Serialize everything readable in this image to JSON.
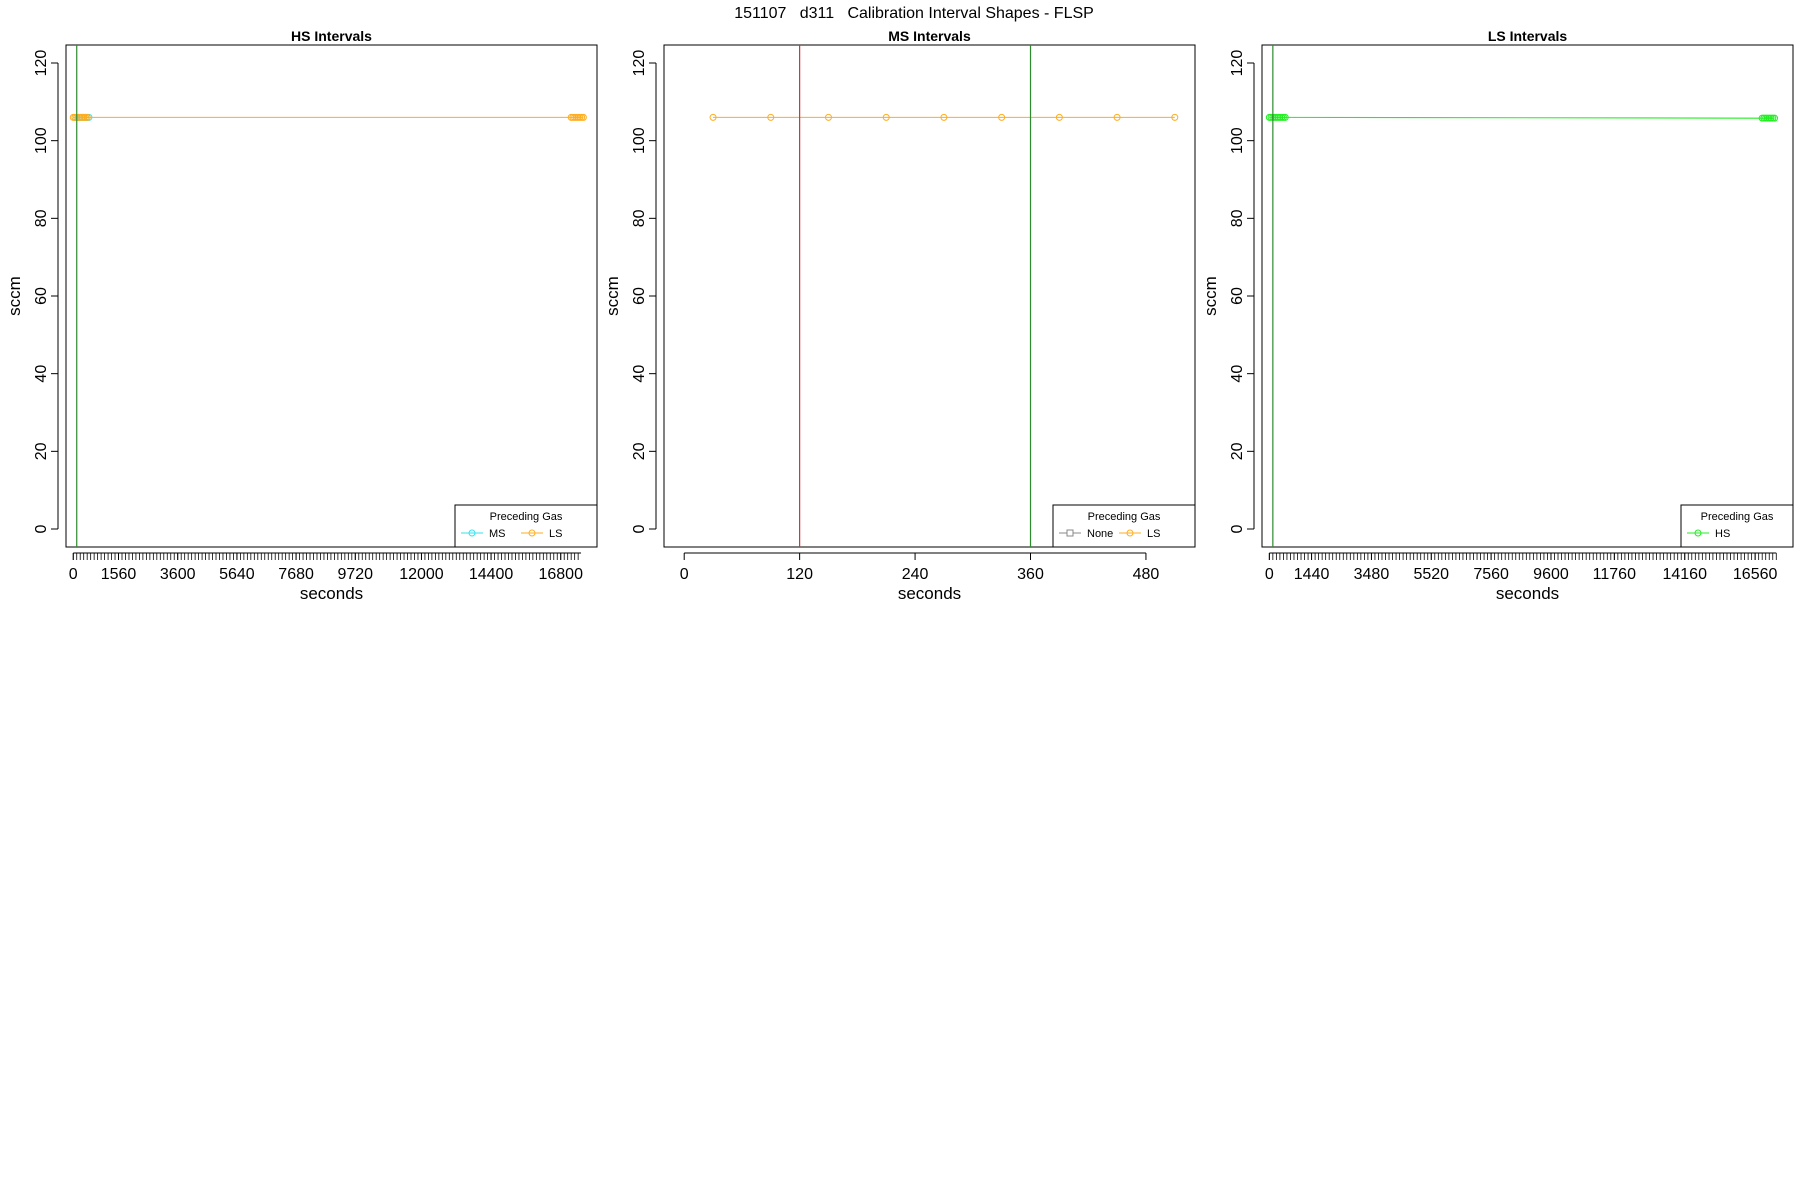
{
  "figure_title": "151107   d311   Calibration Interval Shapes - FLSP",
  "colors": {
    "MS": "#33e3ee",
    "LS": "#ffad1f",
    "HS": "#22ee22",
    "None": "#888888",
    "vline_green": "#2e8b2e",
    "vline_red": "#cc3333"
  },
  "chart_data": [
    {
      "type": "line",
      "title": "HS Intervals",
      "xlabel": "seconds",
      "ylabel": "sccm",
      "ylim": [
        0,
        120
      ],
      "yticks": [
        0,
        20,
        40,
        60,
        80,
        100,
        120
      ],
      "xlim": [
        -250,
        18050
      ],
      "xticks": [
        0,
        1560,
        3600,
        5640,
        7680,
        9720,
        12000,
        14400,
        16800
      ],
      "minor_ticks": {
        "from": 0,
        "to": 17500,
        "step": 120
      },
      "vlines": [
        {
          "x": 120,
          "color": "vline_green"
        }
      ],
      "grid": false,
      "legend": {
        "title": "Preceding Gas",
        "position": "bottom-right",
        "entries": [
          "MS",
          "LS"
        ]
      },
      "series": [
        {
          "name": "MS",
          "color": "MS",
          "marker": "circle",
          "x": [
            60,
            120,
            180,
            240,
            300,
            360,
            420,
            480,
            540
          ],
          "y": [
            106,
            106,
            106,
            106,
            106,
            106,
            106,
            106,
            106
          ]
        },
        {
          "name": "LS",
          "color": "LS",
          "marker": "circle",
          "x": [
            0,
            60,
            120,
            180,
            240,
            300,
            360,
            420,
            480,
            17160,
            17220,
            17280,
            17340,
            17400,
            17460,
            17520,
            17580
          ],
          "y": [
            106,
            106,
            106,
            106,
            106,
            106,
            106,
            106,
            106,
            106,
            106,
            106,
            106,
            106,
            106,
            106,
            106
          ]
        }
      ]
    },
    {
      "type": "line",
      "title": "MS Intervals",
      "xlabel": "seconds",
      "ylabel": "sccm",
      "ylim": [
        0,
        120
      ],
      "yticks": [
        0,
        20,
        40,
        60,
        80,
        100,
        120
      ],
      "xlim": [
        -21,
        531
      ],
      "xticks": [
        0,
        120,
        240,
        360,
        480
      ],
      "minor_ticks": null,
      "vlines": [
        {
          "x": 120,
          "color": "vline_red"
        },
        {
          "x": 360,
          "color": "vline_green"
        }
      ],
      "grid": false,
      "legend": {
        "title": "Preceding Gas",
        "position": "bottom-right",
        "entries": [
          "None",
          "LS"
        ]
      },
      "series": [
        {
          "name": "None",
          "color": "None",
          "marker": "square",
          "x": [],
          "y": []
        },
        {
          "name": "LS",
          "color": "LS",
          "marker": "circle",
          "x": [
            30,
            90,
            150,
            210,
            270,
            330,
            390,
            450,
            510
          ],
          "y": [
            106,
            106,
            106,
            106,
            106,
            106,
            106,
            106,
            106
          ]
        }
      ]
    },
    {
      "type": "line",
      "title": "LS Intervals",
      "xlabel": "seconds",
      "ylabel": "sccm",
      "ylim": [
        0,
        120
      ],
      "yticks": [
        0,
        20,
        40,
        60,
        80,
        100,
        120
      ],
      "xlim": [
        -250,
        17850
      ],
      "xticks": [
        0,
        1440,
        3480,
        5520,
        7560,
        9600,
        11760,
        14160,
        16560
      ],
      "minor_ticks": {
        "from": 0,
        "to": 17280,
        "step": 120
      },
      "vlines": [
        {
          "x": 120,
          "color": "vline_green"
        }
      ],
      "grid": false,
      "legend": {
        "title": "Preceding Gas",
        "position": "bottom-right",
        "entries": [
          "HS"
        ]
      },
      "series": [
        {
          "name": "HS",
          "color": "HS",
          "marker": "circle",
          "x": [
            0,
            60,
            120,
            180,
            240,
            300,
            360,
            420,
            480,
            540,
            16800,
            16860,
            16920,
            16980,
            17040,
            17100,
            17160,
            17220
          ],
          "y": [
            106,
            106,
            106,
            106,
            106,
            106,
            106,
            106,
            106,
            106,
            105.8,
            105.8,
            105.8,
            105.8,
            105.8,
            105.8,
            105.8,
            105.8
          ]
        }
      ]
    }
  ]
}
